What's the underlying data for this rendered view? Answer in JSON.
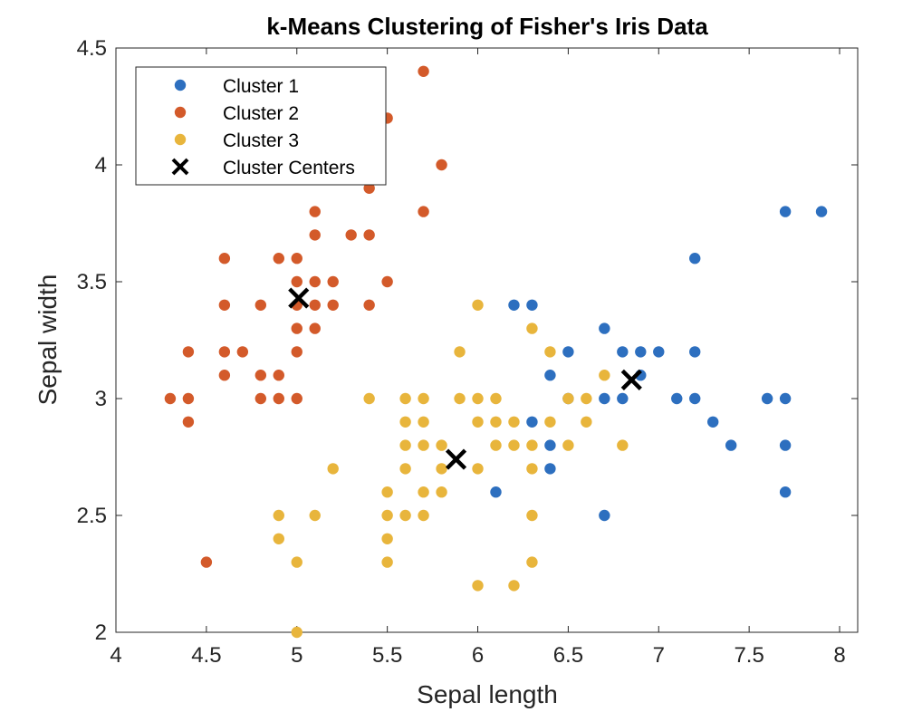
{
  "chart_data": {
    "type": "scatter",
    "title": "k-Means Clustering of Fisher's Iris Data",
    "xlabel": "Sepal length",
    "ylabel": "Sepal width",
    "xlim": [
      4,
      8.1
    ],
    "ylim": [
      2,
      4.5
    ],
    "xticks": [
      4,
      4.5,
      5,
      5.5,
      6,
      6.5,
      7,
      7.5,
      8
    ],
    "xtick_labels": [
      "4",
      "4.5",
      "5",
      "5.5",
      "6",
      "6.5",
      "7",
      "7.5",
      "8"
    ],
    "yticks": [
      2,
      2.5,
      3,
      3.5,
      4,
      4.5
    ],
    "ytick_labels": [
      "2",
      "2.5",
      "3",
      "3.5",
      "4",
      "4.5"
    ],
    "grid": false,
    "legend_position": "top-left",
    "series": [
      {
        "name": "Cluster 1",
        "color": "#2d6fbf",
        "marker": "circle",
        "points": [
          [
            7.7,
            3.8
          ],
          [
            7.9,
            3.8
          ],
          [
            7.2,
            3.6
          ],
          [
            6.2,
            3.4
          ],
          [
            6.3,
            3.4
          ],
          [
            6.7,
            3.3
          ],
          [
            6.5,
            3.2
          ],
          [
            6.8,
            3.2
          ],
          [
            6.9,
            3.2
          ],
          [
            7.0,
            3.2
          ],
          [
            7.2,
            3.2
          ],
          [
            6.4,
            3.1
          ],
          [
            6.9,
            3.1
          ],
          [
            6.5,
            3.0
          ],
          [
            6.7,
            3.0
          ],
          [
            6.8,
            3.0
          ],
          [
            7.1,
            3.0
          ],
          [
            7.2,
            3.0
          ],
          [
            7.6,
            3.0
          ],
          [
            7.7,
            3.0
          ],
          [
            6.3,
            2.9
          ],
          [
            7.3,
            2.9
          ],
          [
            6.4,
            2.8
          ],
          [
            7.4,
            2.8
          ],
          [
            7.7,
            2.8
          ],
          [
            6.4,
            2.7
          ],
          [
            6.1,
            2.6
          ],
          [
            7.7,
            2.6
          ],
          [
            6.7,
            2.5
          ]
        ]
      },
      {
        "name": "Cluster 2",
        "color": "#d35a2a",
        "marker": "circle",
        "points": [
          [
            5.7,
            4.4
          ],
          [
            5.5,
            4.2
          ],
          [
            5.8,
            4.0
          ],
          [
            5.4,
            3.9
          ],
          [
            5.1,
            3.8
          ],
          [
            5.7,
            3.8
          ],
          [
            5.1,
            3.7
          ],
          [
            5.3,
            3.7
          ],
          [
            5.4,
            3.7
          ],
          [
            4.6,
            3.6
          ],
          [
            4.9,
            3.6
          ],
          [
            5.0,
            3.6
          ],
          [
            5.0,
            3.5
          ],
          [
            5.1,
            3.5
          ],
          [
            5.2,
            3.5
          ],
          [
            5.5,
            3.5
          ],
          [
            4.6,
            3.4
          ],
          [
            4.8,
            3.4
          ],
          [
            5.0,
            3.4
          ],
          [
            5.1,
            3.4
          ],
          [
            5.2,
            3.4
          ],
          [
            5.4,
            3.4
          ],
          [
            5.0,
            3.3
          ],
          [
            5.1,
            3.3
          ],
          [
            4.4,
            3.2
          ],
          [
            4.6,
            3.2
          ],
          [
            4.7,
            3.2
          ],
          [
            5.0,
            3.2
          ],
          [
            4.6,
            3.1
          ],
          [
            4.8,
            3.1
          ],
          [
            4.9,
            3.1
          ],
          [
            4.3,
            3.0
          ],
          [
            4.4,
            3.0
          ],
          [
            4.8,
            3.0
          ],
          [
            4.9,
            3.0
          ],
          [
            5.0,
            3.0
          ],
          [
            4.4,
            2.9
          ],
          [
            4.5,
            2.3
          ]
        ]
      },
      {
        "name": "Cluster 3",
        "color": "#e8b53c",
        "marker": "circle",
        "points": [
          [
            6.0,
            3.4
          ],
          [
            6.3,
            3.3
          ],
          [
            5.9,
            3.2
          ],
          [
            6.4,
            3.2
          ],
          [
            6.7,
            3.1
          ],
          [
            5.4,
            3.0
          ],
          [
            5.6,
            3.0
          ],
          [
            5.7,
            3.0
          ],
          [
            5.9,
            3.0
          ],
          [
            6.0,
            3.0
          ],
          [
            6.1,
            3.0
          ],
          [
            6.5,
            3.0
          ],
          [
            6.6,
            3.0
          ],
          [
            5.6,
            2.9
          ],
          [
            5.7,
            2.9
          ],
          [
            6.0,
            2.9
          ],
          [
            6.1,
            2.9
          ],
          [
            6.2,
            2.9
          ],
          [
            6.4,
            2.9
          ],
          [
            6.6,
            2.9
          ],
          [
            5.6,
            2.8
          ],
          [
            5.7,
            2.8
          ],
          [
            5.8,
            2.8
          ],
          [
            6.1,
            2.8
          ],
          [
            6.2,
            2.8
          ],
          [
            6.3,
            2.8
          ],
          [
            6.5,
            2.8
          ],
          [
            6.8,
            2.8
          ],
          [
            5.2,
            2.7
          ],
          [
            5.6,
            2.7
          ],
          [
            5.8,
            2.7
          ],
          [
            6.0,
            2.7
          ],
          [
            6.3,
            2.7
          ],
          [
            5.5,
            2.6
          ],
          [
            5.7,
            2.6
          ],
          [
            5.8,
            2.6
          ],
          [
            4.9,
            2.5
          ],
          [
            5.1,
            2.5
          ],
          [
            5.5,
            2.5
          ],
          [
            5.6,
            2.5
          ],
          [
            5.7,
            2.5
          ],
          [
            6.3,
            2.5
          ],
          [
            4.9,
            2.4
          ],
          [
            5.5,
            2.4
          ],
          [
            5.0,
            2.3
          ],
          [
            5.5,
            2.3
          ],
          [
            6.3,
            2.3
          ],
          [
            6.0,
            2.2
          ],
          [
            6.2,
            2.2
          ],
          [
            5.0,
            2.0
          ]
        ]
      },
      {
        "name": "Cluster Centers",
        "color": "#000000",
        "marker": "x",
        "points": [
          [
            5.01,
            3.43
          ],
          [
            5.88,
            2.74
          ],
          [
            6.85,
            3.08
          ]
        ]
      }
    ]
  }
}
